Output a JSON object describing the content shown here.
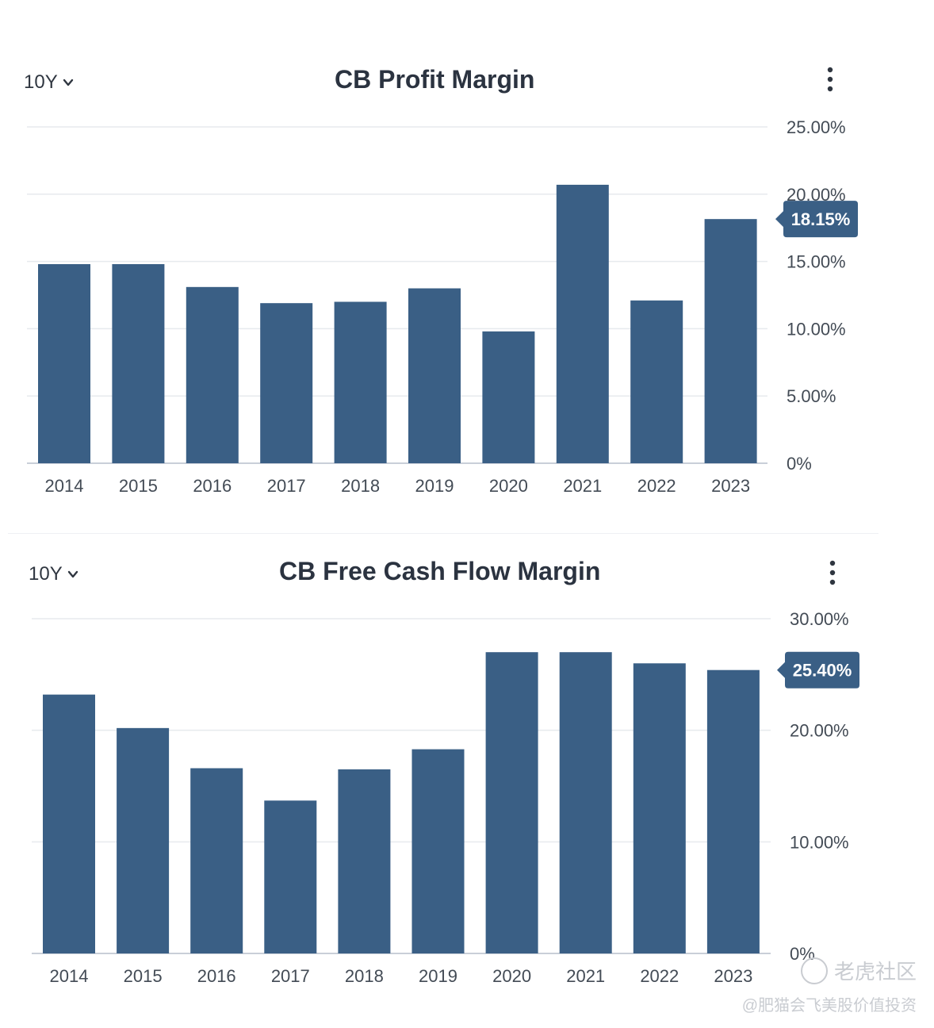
{
  "charts": [
    {
      "period_label": "10Y",
      "title": "CB Profit Margin",
      "callout": "18.15%",
      "color": "#3a5f85",
      "chart_data": {
        "type": "bar",
        "title": "CB Profit Margin",
        "categories": [
          "2014",
          "2015",
          "2016",
          "2017",
          "2018",
          "2019",
          "2020",
          "2021",
          "2022",
          "2023"
        ],
        "values": [
          14.8,
          14.8,
          13.1,
          11.9,
          12.0,
          13.0,
          9.8,
          20.7,
          12.1,
          18.15
        ],
        "ylim": [
          0,
          25
        ],
        "yticks": [
          0,
          5,
          10,
          15,
          20,
          25
        ],
        "ytick_labels": [
          "0%",
          "5.00%",
          "10.00%",
          "15.00%",
          "20.00%",
          "25.00%"
        ],
        "grid": true,
        "xlabel": "",
        "ylabel": ""
      }
    },
    {
      "period_label": "10Y",
      "title": "CB Free Cash Flow Margin",
      "callout": "25.40%",
      "color": "#3a5f85",
      "chart_data": {
        "type": "bar",
        "title": "CB Free Cash Flow Margin",
        "categories": [
          "2014",
          "2015",
          "2016",
          "2017",
          "2018",
          "2019",
          "2020",
          "2021",
          "2022",
          "2023"
        ],
        "values": [
          23.2,
          20.2,
          16.6,
          13.7,
          16.5,
          18.3,
          27.0,
          27.0,
          26.0,
          25.4
        ],
        "ylim": [
          0,
          30
        ],
        "yticks": [
          0,
          10,
          20,
          30
        ],
        "ytick_labels": [
          "0%",
          "10.00%",
          "20.00%",
          "30.00%"
        ],
        "grid": true,
        "xlabel": "",
        "ylabel": ""
      }
    }
  ],
  "watermark": {
    "brand": "老虎社区",
    "user": "@肥猫会飞美股价值投资"
  }
}
